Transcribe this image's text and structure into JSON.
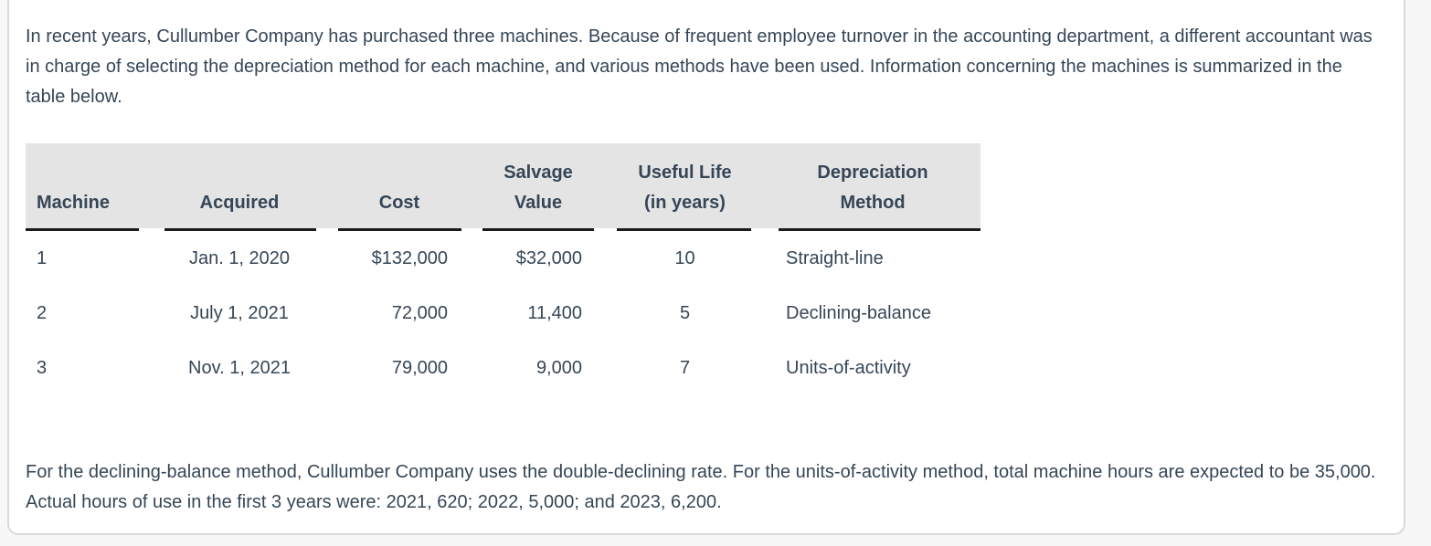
{
  "theme": {
    "page_background": "#f7f7f8",
    "card_background": "#ffffff",
    "card_border_color": "#d9d9d9",
    "text_color": "#364656",
    "table_header_background": "#e4e4e4",
    "table_underline_color": "#1b1b1b"
  },
  "intro_paragraph": "In recent years, Cullumber Company has purchased three machines. Because of frequent employee turnover in the accounting department, a different accountant was in charge of selecting the depreciation method for each machine, and various methods have been used. Information concerning the machines is summarized in the table below.",
  "machines_table": {
    "columns": [
      {
        "label": "Machine",
        "lines": [
          "Machine"
        ]
      },
      {
        "label": "Acquired",
        "lines": [
          "Acquired"
        ]
      },
      {
        "label": "Cost",
        "lines": [
          "Cost"
        ]
      },
      {
        "label": "Salvage Value",
        "lines": [
          "Salvage",
          "Value"
        ]
      },
      {
        "label": "Useful Life (in years)",
        "lines": [
          "Useful Life",
          "(in years)"
        ]
      },
      {
        "label": "Depreciation Method",
        "lines": [
          "Depreciation",
          "Method"
        ]
      }
    ],
    "rows": [
      {
        "machine": "1",
        "acquired": "Jan. 1, 2020",
        "cost": "$132,000",
        "salvage_value": "$32,000",
        "useful_life_years": "10",
        "depreciation_method": "Straight-line"
      },
      {
        "machine": "2",
        "acquired": "July 1, 2021",
        "cost": "72,000",
        "salvage_value": "11,400",
        "useful_life_years": "5",
        "depreciation_method": "Declining-balance"
      },
      {
        "machine": "3",
        "acquired": "Nov. 1, 2021",
        "cost": "79,000",
        "salvage_value": "9,000",
        "useful_life_years": "7",
        "depreciation_method": "Units-of-activity"
      }
    ]
  },
  "footer_paragraph": "For the declining-balance method, Cullumber Company uses the double-declining rate. For the units-of-activity method, total machine hours are expected to be 35,000. Actual hours of use in the first 3 years were: 2021, 620; 2022, 5,000; and 2023, 6,200."
}
